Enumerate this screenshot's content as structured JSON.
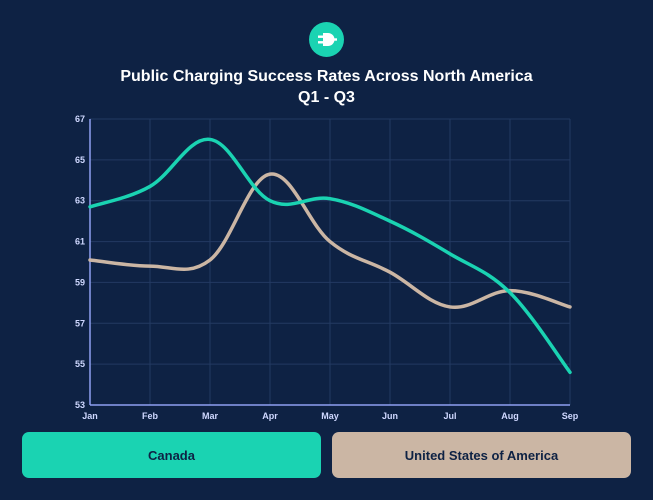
{
  "header": {
    "icon": "ev-plug-icon",
    "title_line1": "Public Charging Success Rates Across North America",
    "title_line2": "Q1 - Q3"
  },
  "colors": {
    "background": "#0e2244",
    "canada": "#1ad3b2",
    "usa": "#cbb6a4",
    "axis": "#8ea0f2",
    "tick_text": "#cfd8ff",
    "grid": "#233a62"
  },
  "chart_data": {
    "type": "line",
    "title": "Public Charging Success Rates Across North America",
    "subtitle": "Q1 - Q3",
    "categories": [
      "Jan",
      "Feb",
      "Mar",
      "Apr",
      "May",
      "Jun",
      "Jul",
      "Aug",
      "Sep"
    ],
    "series": [
      {
        "name": "Canada",
        "values": [
          62.7,
          63.7,
          66.0,
          63.0,
          63.1,
          62.0,
          60.4,
          58.5,
          54.6
        ]
      },
      {
        "name": "United States of America",
        "values": [
          60.1,
          59.8,
          60.1,
          64.3,
          61.0,
          59.5,
          57.8,
          58.6,
          57.8
        ]
      }
    ],
    "ylim": [
      53,
      67
    ],
    "yticks": [
      53,
      55,
      57,
      59,
      61,
      63,
      65,
      67
    ],
    "grid": true,
    "legend": "bottom"
  }
}
